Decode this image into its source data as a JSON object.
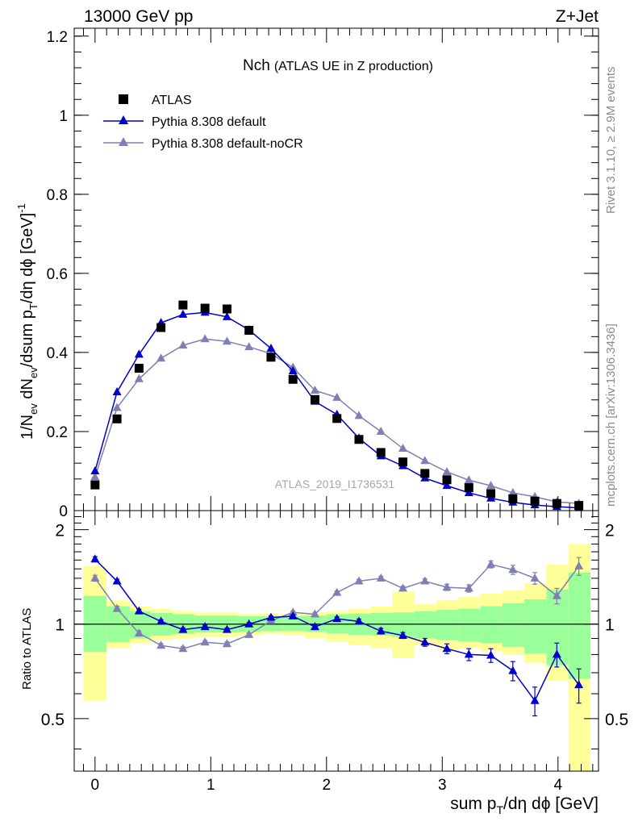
{
  "header": {
    "left": "13000 GeV pp",
    "right": "Z+Jet"
  },
  "side_labels": {
    "rivet": "Rivet 3.1.10, ≥ 2.9M events",
    "mcplots": "mcplots.cern.ch [arXiv:1306.3436]"
  },
  "chart_data": [
    {
      "type": "scatter",
      "title": "Nch (ATLAS UE in Z production)",
      "title_main": "Nch",
      "title_sub": "(ATLAS UE in Z production)",
      "watermark": "ATLAS_2019_I1736531",
      "ylabel": "1/N_ev dN_ev/dsum p_T/dη dϕ [GeV]^-1",
      "xlim": [
        -0.18,
        4.35
      ],
      "ylim": [
        0,
        1.22
      ],
      "yticks": [
        0,
        0.2,
        0.4,
        0.6,
        0.8,
        1,
        1.2
      ],
      "ytick_labels": [
        "0",
        "0.2",
        "0.4",
        "0.6",
        "0.8",
        "1",
        "1.2"
      ],
      "legend_position": "top-left",
      "x": [
        0.0,
        0.19,
        0.38,
        0.57,
        0.76,
        0.95,
        1.14,
        1.33,
        1.52,
        1.71,
        1.9,
        2.09,
        2.28,
        2.47,
        2.66,
        2.85,
        3.04,
        3.23,
        3.42,
        3.61,
        3.8,
        3.99,
        4.18
      ],
      "series": [
        {
          "name": "ATLAS",
          "marker": "square",
          "color": "#000000",
          "values": [
            0.065,
            0.232,
            0.36,
            0.463,
            0.52,
            0.512,
            0.51,
            0.456,
            0.388,
            0.332,
            0.281,
            0.233,
            0.18,
            0.147,
            0.123,
            0.094,
            0.078,
            0.058,
            0.043,
            0.03,
            0.024,
            0.018,
            0.013
          ]
        },
        {
          "name": "Pythia 8.308 default",
          "marker": "triangle",
          "color": "#0000cc",
          "values": [
            0.1,
            0.3,
            0.395,
            0.475,
            0.496,
            0.501,
            0.49,
            0.457,
            0.41,
            0.353,
            0.276,
            0.243,
            0.183,
            0.138,
            0.113,
            0.082,
            0.063,
            0.045,
            0.031,
            0.021,
            0.014,
            0.01,
            0.007
          ]
        },
        {
          "name": "Pythia 8.308 default-noCR",
          "marker": "triangle",
          "color": "#7f7fb3",
          "values": [
            0.085,
            0.26,
            0.333,
            0.385,
            0.418,
            0.434,
            0.428,
            0.414,
            0.397,
            0.362,
            0.304,
            0.286,
            0.24,
            0.2,
            0.157,
            0.126,
            0.098,
            0.077,
            0.063,
            0.045,
            0.035,
            0.022,
            0.018
          ]
        }
      ]
    },
    {
      "type": "line",
      "ylabel": "Ratio to ATLAS",
      "xlabel": "sum p_T/dη dϕ [GeV]",
      "xlim": [
        -0.18,
        4.35
      ],
      "ylim": [
        0.34,
        2.3
      ],
      "xticks": [
        0,
        1,
        2,
        3,
        4
      ],
      "xtick_labels": [
        "0",
        "1",
        "2",
        "3",
        "4"
      ],
      "yticks": [
        0.5,
        1,
        2
      ],
      "ytick_labels": [
        "0.5",
        "1",
        "2"
      ],
      "reference_line": 1,
      "x": [
        0.0,
        0.19,
        0.38,
        0.57,
        0.76,
        0.95,
        1.14,
        1.33,
        1.52,
        1.71,
        1.9,
        2.09,
        2.28,
        2.47,
        2.66,
        2.85,
        3.04,
        3.23,
        3.42,
        3.61,
        3.8,
        3.99,
        4.18
      ],
      "bin_edges": [
        -0.1,
        0.1,
        0.3,
        0.48,
        0.67,
        0.86,
        1.05,
        1.24,
        1.43,
        1.62,
        1.81,
        2.0,
        2.19,
        2.38,
        2.57,
        2.76,
        2.95,
        3.14,
        3.33,
        3.52,
        3.71,
        3.9,
        4.09,
        4.28
      ],
      "bands": [
        {
          "name": "stat-band",
          "color": "#99ff99",
          "low": [
            0.815,
            0.875,
            0.9,
            0.92,
            0.93,
            0.94,
            0.94,
            0.945,
            0.95,
            0.95,
            0.945,
            0.935,
            0.925,
            0.92,
            0.91,
            0.9,
            0.89,
            0.88,
            0.87,
            0.845,
            0.805,
            0.74,
            0.67
          ],
          "high": [
            1.23,
            1.14,
            1.1,
            1.085,
            1.075,
            1.065,
            1.065,
            1.06,
            1.06,
            1.06,
            1.065,
            1.075,
            1.08,
            1.085,
            1.09,
            1.1,
            1.11,
            1.12,
            1.14,
            1.165,
            1.2,
            1.29,
            1.46
          ]
        },
        {
          "name": "total-band",
          "color": "#ffff99",
          "low": [
            0.57,
            0.84,
            0.87,
            0.89,
            0.9,
            0.91,
            0.91,
            0.92,
            0.93,
            0.92,
            0.9,
            0.88,
            0.86,
            0.84,
            0.78,
            0.86,
            0.83,
            0.84,
            0.82,
            0.8,
            0.75,
            0.66,
            0.34
          ]
        },
        {
          "name": "total-band-high",
          "color": "#ffff99",
          "high": [
            1.53,
            1.19,
            1.14,
            1.12,
            1.1,
            1.09,
            1.09,
            1.08,
            1.08,
            1.08,
            1.09,
            1.1,
            1.12,
            1.14,
            1.27,
            1.16,
            1.19,
            1.22,
            1.25,
            1.28,
            1.35,
            1.55,
            1.8
          ]
        }
      ],
      "series": [
        {
          "name": "Pythia 8.308 default",
          "color": "#0000cc",
          "values": [
            1.61,
            1.37,
            1.1,
            1.02,
            0.96,
            0.98,
            0.96,
            1.0,
            1.05,
            1.06,
            0.98,
            1.04,
            1.02,
            0.95,
            0.92,
            0.875,
            0.835,
            0.8,
            0.795,
            0.71,
            0.57,
            0.8,
            0.64
          ],
          "errors": [
            0.03,
            0.02,
            0.015,
            0.012,
            0.012,
            0.012,
            0.012,
            0.012,
            0.012,
            0.012,
            0.015,
            0.015,
            0.018,
            0.02,
            0.02,
            0.025,
            0.03,
            0.035,
            0.04,
            0.05,
            0.06,
            0.07,
            0.08
          ]
        },
        {
          "name": "Pythia 8.308 default-noCR",
          "color": "#7f7fb3",
          "values": [
            1.4,
            1.12,
            0.935,
            0.855,
            0.835,
            0.875,
            0.865,
            0.925,
            1.025,
            1.09,
            1.075,
            1.26,
            1.37,
            1.4,
            1.3,
            1.37,
            1.31,
            1.3,
            1.55,
            1.49,
            1.4,
            1.23,
            1.53
          ],
          "errors": [
            0.03,
            0.02,
            0.015,
            0.012,
            0.012,
            0.012,
            0.012,
            0.012,
            0.012,
            0.012,
            0.015,
            0.015,
            0.018,
            0.02,
            0.02,
            0.025,
            0.03,
            0.035,
            0.04,
            0.05,
            0.06,
            0.07,
            0.1
          ]
        }
      ]
    }
  ]
}
